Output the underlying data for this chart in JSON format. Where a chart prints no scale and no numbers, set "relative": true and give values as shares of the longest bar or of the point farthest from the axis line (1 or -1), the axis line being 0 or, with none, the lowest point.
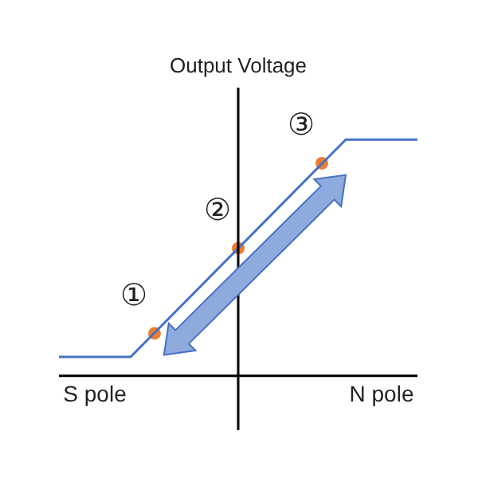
{
  "chart_data": {
    "type": "line",
    "ylabel": "Output Voltage",
    "relative": true,
    "categories": [
      null,
      null,
      null,
      "S pole",
      null,
      null,
      null,
      null,
      null,
      null,
      null,
      null,
      null,
      null,
      null,
      null,
      null,
      null,
      null,
      null,
      null,
      null,
      null,
      null,
      null,
      null,
      null,
      "N pole",
      null,
      null,
      null
    ],
    "series": [
      {
        "color": "#4472c4",
        "values": [
          0.08,
          null,
          null,
          null,
          null,
          null,
          0.08,
          null,
          null,
          null,
          null,
          null,
          null,
          null,
          null,
          null,
          null,
          null,
          null,
          null,
          null,
          null,
          null,
          null,
          1,
          null,
          null,
          null,
          null,
          null,
          1
        ],
        "marker": "none"
      },
      {
        "type": "scatter",
        "color": "#ed7d31",
        "values": [
          null,
          null,
          null,
          null,
          null,
          null,
          null,
          null,
          0.18,
          null,
          null,
          null,
          null,
          null,
          null,
          0.54,
          null,
          null,
          null,
          null,
          null,
          null,
          0.9,
          null,
          null,
          null,
          null,
          null,
          null,
          null,
          null
        ],
        "marker": "circle"
      }
    ],
    "tick_labels": "x",
    "legend": false,
    "annotations": [
      "①",
      "②",
      "③"
    ]
  }
}
